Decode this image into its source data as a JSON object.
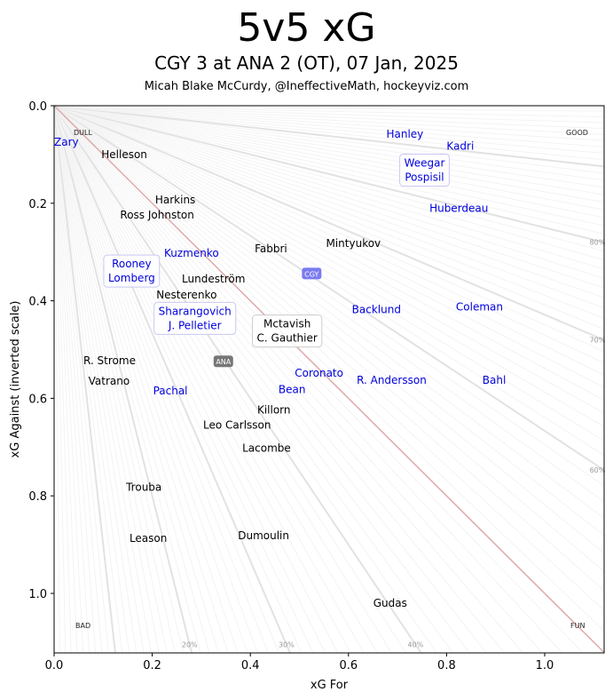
{
  "header": {
    "title": "5v5 xG",
    "subtitle": "CGY 3 at ANA 2 (OT), 07 Jan, 2025",
    "credit": "Micah Blake McCurdy, @IneffectiveMath, hockeyviz.com"
  },
  "chart_data": {
    "type": "scatter",
    "title": "5v5 xG",
    "subtitle": "CGY 3 at ANA 2 (OT), 07 Jan, 2025",
    "xlabel": "xG For",
    "ylabel": "xG Against (inverted scale)",
    "xlim": [
      0,
      1.125
    ],
    "ylim": [
      1.12,
      0
    ],
    "y_inverted": true,
    "grid": false,
    "x_ticks": [
      "0.0",
      "0.2",
      "0.4",
      "0.6",
      "0.8",
      "1.0"
    ],
    "y_ticks": [
      "0.0",
      "0.2",
      "0.4",
      "0.6",
      "0.8",
      "1.0"
    ],
    "colors": {
      "CGY": "#0000dd",
      "ANA": "#000000",
      "cgy_badge": "#7b7bef",
      "ana_badge": "#777777",
      "diagonal": "#e0a8a8",
      "fan_major": "#e2e2e2",
      "fan_minor": "#f3f3f3"
    },
    "corner_labels": {
      "top_left": "DULL",
      "top_right": "GOOD",
      "bottom_left": "BAD",
      "bottom_right": "FUN"
    },
    "percent_lines": [
      {
        "label": "20%",
        "value": 0.2
      },
      {
        "label": "30%",
        "value": 0.3
      },
      {
        "label": "40%",
        "value": 0.4
      },
      {
        "label": "60%",
        "value": 0.6
      },
      {
        "label": "70%",
        "value": 0.7
      },
      {
        "label": "80%",
        "value": 0.8
      }
    ],
    "team_markers": [
      {
        "team": "CGY",
        "x": 0.525,
        "y": 0.345
      },
      {
        "team": "ANA",
        "x": 0.345,
        "y": 0.525
      }
    ],
    "series": [
      {
        "name": "CGY",
        "points": [
          {
            "label": "Zary",
            "x": 0.025,
            "y": 0.075
          },
          {
            "label": "Hanley",
            "x": 0.715,
            "y": 0.058
          },
          {
            "label": "Weegar\nPospisil",
            "x": 0.755,
            "y": 0.11,
            "boxed": true
          },
          {
            "label": "Kadri",
            "x": 0.828,
            "y": 0.105
          },
          {
            "label": "Huberdeau",
            "x": 0.825,
            "y": 0.21
          },
          {
            "label": "Kuzmenko",
            "x": 0.28,
            "y": 0.302
          },
          {
            "label": "Rooney\nLomberg",
            "x": 0.158,
            "y": 0.343,
            "boxed": true
          },
          {
            "label": "Sharangovich\nJ. Pelletier",
            "x": 0.287,
            "y": 0.425,
            "boxed": true
          },
          {
            "label": "Backlund",
            "x": 0.657,
            "y": 0.418
          },
          {
            "label": "Coleman",
            "x": 0.867,
            "y": 0.413
          },
          {
            "label": "Coronato",
            "x": 0.54,
            "y": 0.548
          },
          {
            "label": "Bean",
            "x": 0.485,
            "y": 0.582
          },
          {
            "label": "R. Andersson",
            "x": 0.688,
            "y": 0.563
          },
          {
            "label": "Bahl",
            "x": 0.897,
            "y": 0.563
          },
          {
            "label": "Pachal",
            "x": 0.237,
            "y": 0.585
          }
        ]
      },
      {
        "name": "ANA",
        "points": [
          {
            "label": "Helleson",
            "x": 0.143,
            "y": 0.1
          },
          {
            "label": "Harkins",
            "x": 0.247,
            "y": 0.205
          },
          {
            "label": "Ross Johnston",
            "x": 0.21,
            "y": 0.213
          },
          {
            "label": "Fabbri",
            "x": 0.442,
            "y": 0.293
          },
          {
            "label": "Mintyukov",
            "x": 0.61,
            "y": 0.282
          },
          {
            "label": "Lundeström",
            "x": 0.325,
            "y": 0.358
          },
          {
            "label": "Nesterenko",
            "x": 0.27,
            "y": 0.393
          },
          {
            "label": "Mctavish\nC. Gauthier",
            "x": 0.475,
            "y": 0.462,
            "boxed": true
          },
          {
            "label": "R. Strome",
            "x": 0.113,
            "y": 0.523
          },
          {
            "label": "Vatrano",
            "x": 0.112,
            "y": 0.565
          },
          {
            "label": "Leo Carlsson",
            "x": 0.373,
            "y": 0.64
          },
          {
            "label": "Killorn",
            "x": 0.448,
            "y": 0.638
          },
          {
            "label": "Lacombe",
            "x": 0.433,
            "y": 0.702
          },
          {
            "label": "Trouba",
            "x": 0.183,
            "y": 0.782
          },
          {
            "label": "Leason",
            "x": 0.192,
            "y": 0.887
          },
          {
            "label": "Dumoulin",
            "x": 0.427,
            "y": 0.882
          },
          {
            "label": "Gudas",
            "x": 0.685,
            "y": 1.02
          }
        ]
      }
    ]
  }
}
